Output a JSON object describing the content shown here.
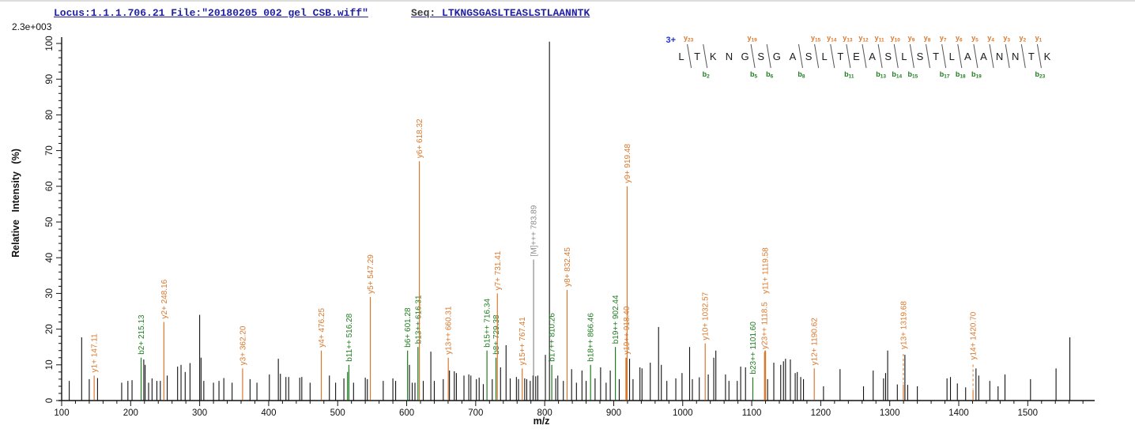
{
  "header": {
    "locus": "Locus:1.1.1.706.21 File:\"20180205_002_gel_CSB.wiff\"",
    "seq_label": "Seq: ",
    "seq_value": "LTKNGSGASLTEASLSTLAANNTK"
  },
  "scale_note": "2.3e+003",
  "axes": {
    "x_label": "m/z",
    "y_label": "Relative Intensity (%)",
    "x": {
      "min": 100,
      "max": 1597,
      "major": 100,
      "minor": 20,
      "last_labeled": 1500
    },
    "y": {
      "min": 0,
      "max": 100,
      "major": 10,
      "minor": 2
    }
  },
  "colors": {
    "y_ion": "#d9782d",
    "b_ion": "#1e7d1e",
    "precursor": "#8a8a8a",
    "peak": "#111111",
    "axis": "#111111",
    "header_blue": "#2121a3",
    "charge_blue": "#2233cc",
    "slash": "#555555"
  },
  "peptide_annotation": {
    "charge_state": "3+",
    "residues": [
      "L",
      "T",
      "K",
      "N",
      "G",
      "S",
      "G",
      "A",
      "S",
      "L",
      "T",
      "E",
      "A",
      "S",
      "L",
      "S",
      "T",
      "L",
      "A",
      "A",
      "N",
      "N",
      "T",
      "K"
    ],
    "cleavages": [
      {
        "after": 1,
        "y": "y23"
      },
      {
        "after": 2,
        "b": "b2"
      },
      {
        "after": 5,
        "y": "y19",
        "b": "b5"
      },
      {
        "after": 6,
        "b": "b6"
      },
      {
        "after": 8,
        "b": "b8"
      },
      {
        "after": 9,
        "y": "y15"
      },
      {
        "after": 10,
        "y": "y14"
      },
      {
        "after": 11,
        "y": "y13",
        "b": "b11"
      },
      {
        "after": 12,
        "y": "y12"
      },
      {
        "after": 13,
        "y": "y11",
        "b": "b13"
      },
      {
        "after": 14,
        "y": "y10",
        "b": "b14"
      },
      {
        "after": 15,
        "y": "y9",
        "b": "b15"
      },
      {
        "after": 16,
        "y": "y8"
      },
      {
        "after": 17,
        "y": "y7",
        "b": "b17"
      },
      {
        "after": 18,
        "y": "y6",
        "b": "b18"
      },
      {
        "after": 19,
        "y": "y5",
        "b": "b19"
      },
      {
        "after": 20,
        "y": "y4"
      },
      {
        "after": 21,
        "y": "y3"
      },
      {
        "after": 22,
        "y": "y2"
      },
      {
        "after": 23,
        "y": "y1",
        "b": "b23"
      }
    ]
  },
  "chart_data": {
    "type": "bar",
    "subtype": "ms2-spectrum",
    "xlabel": "m/z",
    "ylabel": "Relative Intensity (%)",
    "xlim": [
      100,
      1597
    ],
    "ylim": [
      0,
      100
    ],
    "peaks_labeled": [
      {
        "mz": 147.11,
        "i": 7,
        "c": "y",
        "l": "y1+ 147.11"
      },
      {
        "mz": 215.13,
        "i": 12,
        "c": "b",
        "l": "b2+ 215.13"
      },
      {
        "mz": 248.16,
        "i": 22,
        "c": "y",
        "l": "y2+ 248.16"
      },
      {
        "mz": 362.2,
        "i": 9,
        "c": "y",
        "l": "y3+ 362.20"
      },
      {
        "mz": 476.25,
        "i": 14,
        "c": "y",
        "l": "y4+ 476.25"
      },
      {
        "mz": 514.3,
        "i": 8,
        "c": "b"
      },
      {
        "mz": 516.28,
        "i": 10,
        "c": "b",
        "l": "b11++ 516.28"
      },
      {
        "mz": 547.29,
        "i": 29,
        "c": "y",
        "l": "y5+ 547.29"
      },
      {
        "mz": 601.28,
        "i": 14,
        "c": "b",
        "l": "b6+ 601.28"
      },
      {
        "mz": 616.31,
        "i": 15,
        "c": "b",
        "l": "b13++ 616.31"
      },
      {
        "mz": 618.32,
        "i": 67,
        "c": "y",
        "l": "y6+ 618.32"
      },
      {
        "mz": 660.31,
        "i": 12,
        "c": "y",
        "l": "y13++ 660.31"
      },
      {
        "mz": 716.34,
        "i": 14,
        "c": "b",
        "l": "b15++ 716.34"
      },
      {
        "mz": 729.38,
        "i": 12,
        "c": "b",
        "l": "b8+ 729.38"
      },
      {
        "mz": 731.41,
        "i": 30,
        "c": "y",
        "l": "y7+ 731.41"
      },
      {
        "mz": 767.41,
        "i": 9,
        "c": "y",
        "l": "y15++ 767.41"
      },
      {
        "mz": 783.89,
        "i": 39.5,
        "c": "m",
        "l": "[M]+++ 783.89"
      },
      {
        "mz": 810.26,
        "i": 10,
        "c": "b",
        "l": "b17++ 810.26"
      },
      {
        "mz": 832.45,
        "i": 31,
        "c": "y",
        "l": "y8+ 832.45"
      },
      {
        "mz": 866.46,
        "i": 10,
        "c": "b",
        "l": "b18++ 866.46"
      },
      {
        "mz": 902.44,
        "i": 15,
        "c": "b",
        "l": "b19++ 902.44"
      },
      {
        "mz": 918.4,
        "i": 12,
        "c": "y",
        "l": "y19++ 918.40",
        "w": 2.5
      },
      {
        "mz": 919.48,
        "i": 60,
        "c": "y",
        "l": "y9+ 919.48"
      },
      {
        "mz": 1032.57,
        "i": 16,
        "c": "y",
        "l": "y10+ 1032.57"
      },
      {
        "mz": 1101.6,
        "i": 6.5,
        "c": "b",
        "l": "b23++ 1101.60"
      },
      {
        "mz": 1118.5,
        "i": 13.5,
        "c": "y",
        "l": "y23++ 1118.5"
      },
      {
        "mz": 1119.58,
        "i": 14,
        "c": "y",
        "l": "y11+ 1119.58",
        "w": 2,
        "lf": 29
      },
      {
        "mz": 1190.62,
        "i": 9,
        "c": "y",
        "l": "y12+ 1190.62"
      },
      {
        "mz": 1319.68,
        "i": 4.5,
        "c": "y",
        "l": "y13+ 1319.68",
        "d": true,
        "lf": 13.5
      },
      {
        "mz": 1420.7,
        "i": 3,
        "c": "y",
        "l": "y14+ 1420.70",
        "d": true,
        "lf": 10.5
      }
    ],
    "peaks_unlabeled": [
      [
        111,
        5.5
      ],
      [
        129,
        17.7
      ],
      [
        140,
        6
      ],
      [
        152,
        6.3
      ],
      [
        187,
        5
      ],
      [
        196,
        5.5
      ],
      [
        202,
        5.7
      ],
      [
        219,
        11.5
      ],
      [
        221,
        10
      ],
      [
        226,
        5
      ],
      [
        231,
        6.2
      ],
      [
        238,
        5.5
      ],
      [
        243,
        5.5
      ],
      [
        253,
        7
      ],
      [
        268,
        9.5
      ],
      [
        273,
        10
      ],
      [
        279,
        8
      ],
      [
        286,
        10.5
      ],
      [
        300,
        24
      ],
      [
        302,
        12
      ],
      [
        306,
        5.5
      ],
      [
        320,
        5
      ],
      [
        328,
        5.5
      ],
      [
        335,
        6.3
      ],
      [
        347,
        5
      ],
      [
        373,
        6
      ],
      [
        383,
        5
      ],
      [
        401,
        7.3
      ],
      [
        414,
        11.7
      ],
      [
        417,
        7.5
      ],
      [
        425,
        6.6
      ],
      [
        429,
        6.6
      ],
      [
        445,
        6.4
      ],
      [
        448,
        6.6
      ],
      [
        460,
        5
      ],
      [
        488,
        7
      ],
      [
        497,
        5
      ],
      [
        509,
        6.2
      ],
      [
        523,
        5
      ],
      [
        540,
        6.4
      ],
      [
        543,
        6
      ],
      [
        566,
        5.5
      ],
      [
        580,
        6.2
      ],
      [
        584,
        5.5
      ],
      [
        604,
        10
      ],
      [
        608,
        5
      ],
      [
        612,
        5
      ],
      [
        624,
        5.5
      ],
      [
        635,
        13.7
      ],
      [
        640,
        5.5
      ],
      [
        653,
        6
      ],
      [
        662,
        8.4
      ],
      [
        669,
        8.2
      ],
      [
        672,
        7.7
      ],
      [
        683,
        7
      ],
      [
        690,
        7.3
      ],
      [
        693,
        7
      ],
      [
        701,
        6
      ],
      [
        705,
        6.4
      ],
      [
        711,
        4.6
      ],
      [
        724,
        6
      ],
      [
        736,
        9.3
      ],
      [
        744,
        15.5
      ],
      [
        750,
        6.2
      ],
      [
        759,
        6.6
      ],
      [
        762,
        6
      ],
      [
        771,
        6.2
      ],
      [
        774,
        6
      ],
      [
        779,
        5.5
      ],
      [
        783,
        7
      ],
      [
        787,
        6.8
      ],
      [
        790,
        7
      ],
      [
        801,
        12.8
      ],
      [
        806.9,
        100.5
      ],
      [
        816,
        6.2
      ],
      [
        819,
        7
      ],
      [
        827,
        5.5
      ],
      [
        839,
        8.8
      ],
      [
        846,
        5
      ],
      [
        854,
        8.4
      ],
      [
        860,
        5.5
      ],
      [
        873,
        6.2
      ],
      [
        881,
        9.3
      ],
      [
        889,
        5
      ],
      [
        895,
        8.4
      ],
      [
        908,
        6
      ],
      [
        923,
        11.7
      ],
      [
        928,
        6
      ],
      [
        938,
        9.3
      ],
      [
        941,
        9
      ],
      [
        953,
        10.6
      ],
      [
        965,
        20.6
      ],
      [
        969,
        10
      ],
      [
        977,
        5.5
      ],
      [
        990,
        6.2
      ],
      [
        999,
        7.7
      ],
      [
        1010,
        15
      ],
      [
        1014,
        6
      ],
      [
        1024,
        6.5
      ],
      [
        1037,
        7.3
      ],
      [
        1045,
        12
      ],
      [
        1048,
        14
      ],
      [
        1062,
        7.3
      ],
      [
        1067,
        5.5
      ],
      [
        1079,
        5.5
      ],
      [
        1084,
        9.5
      ],
      [
        1091,
        9.3
      ],
      [
        1123,
        6
      ],
      [
        1132,
        10.6
      ],
      [
        1142,
        10
      ],
      [
        1146,
        11
      ],
      [
        1149,
        11.7
      ],
      [
        1156,
        11.5
      ],
      [
        1163,
        7.7
      ],
      [
        1166,
        8
      ],
      [
        1171,
        6.6
      ],
      [
        1175,
        6
      ],
      [
        1204,
        4
      ],
      [
        1228,
        8.8
      ],
      [
        1262,
        4
      ],
      [
        1276,
        8.4
      ],
      [
        1291,
        6.2
      ],
      [
        1294,
        7.7
      ],
      [
        1297,
        14
      ],
      [
        1311,
        4.5
      ],
      [
        1322,
        12.8
      ],
      [
        1326,
        4.4
      ],
      [
        1340,
        4
      ],
      [
        1383,
        6.2
      ],
      [
        1388,
        6.6
      ],
      [
        1398,
        4.8
      ],
      [
        1410,
        3.7
      ],
      [
        1425,
        9
      ],
      [
        1429,
        7
      ],
      [
        1445,
        5.5
      ],
      [
        1457,
        4
      ],
      [
        1467,
        7.3
      ],
      [
        1504,
        6
      ],
      [
        1541,
        9
      ],
      [
        1561,
        17.7
      ]
    ]
  }
}
